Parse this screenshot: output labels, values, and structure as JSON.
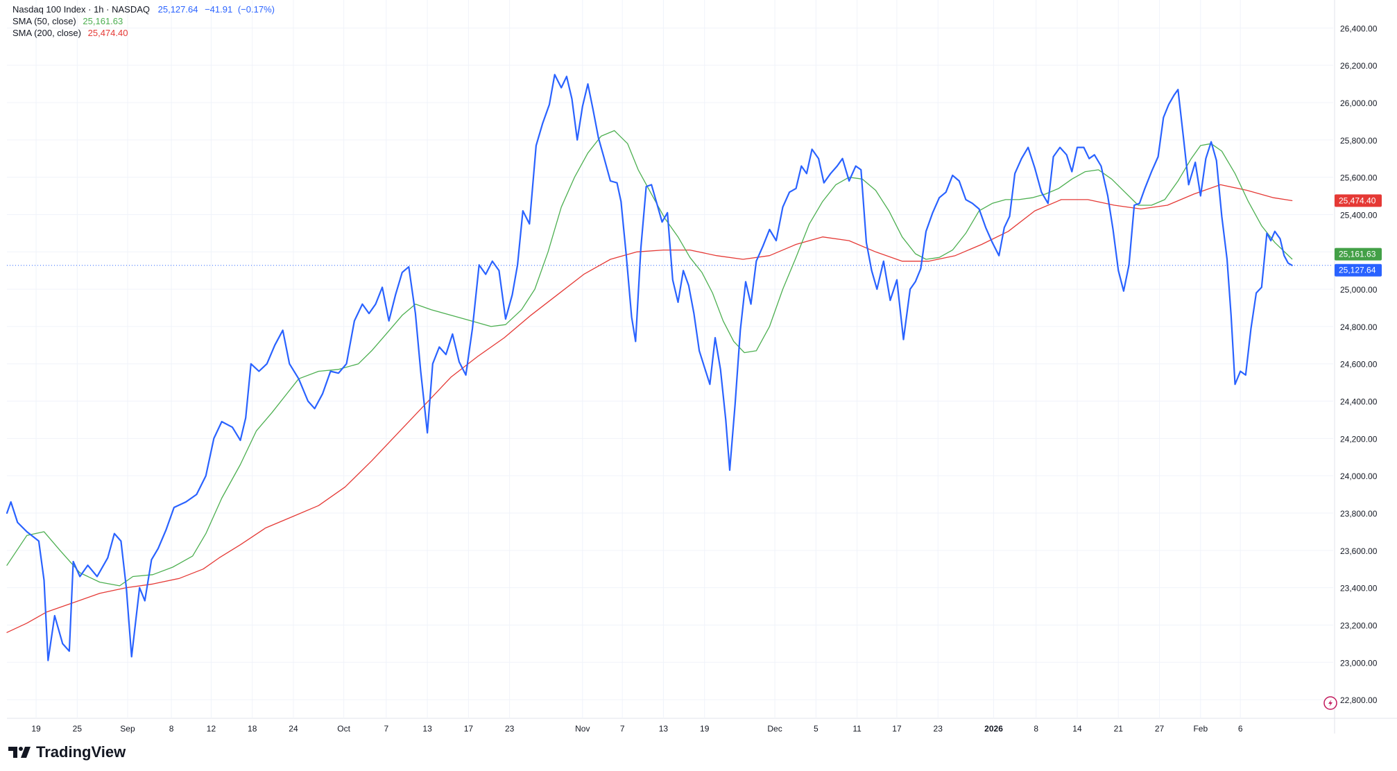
{
  "chart_data": {
    "type": "line",
    "instrument": {
      "name": "Nasdaq 100 Index",
      "interval": "1h",
      "exchange": "NASDAQ",
      "last": "25,127.64",
      "change": "−41.91",
      "change_pct": "(−0.17%)",
      "title_line": "Nasdaq 100 Index · 1h · NASDAQ"
    },
    "indicators": [
      {
        "label": "SMA (50, close)",
        "value": "25,161.63",
        "color": "#4caf50"
      },
      {
        "label": "SMA (200, close)",
        "value": "25,474.40",
        "color": "#e53935"
      }
    ],
    "price_color": "#2962ff",
    "ylim": [
      22700,
      26550
    ],
    "yticks": [
      "26,400.00",
      "26,200.00",
      "26,000.00",
      "25,800.00",
      "25,600.00",
      "25,400.00",
      "25,200.00",
      "25,000.00",
      "24,800.00",
      "24,600.00",
      "24,400.00",
      "24,200.00",
      "24,000.00",
      "23,800.00",
      "23,600.00",
      "23,400.00",
      "23,200.00",
      "23,000.00",
      "22,800.00"
    ],
    "ytick_values": [
      26400,
      26200,
      26000,
      25800,
      25600,
      25400,
      25200,
      25000,
      24800,
      24600,
      24400,
      24200,
      24000,
      23800,
      23600,
      23400,
      23200,
      23000,
      22800
    ],
    "xlim": [
      0,
      100
    ],
    "xticks": [
      {
        "label": "19",
        "x": 2.2,
        "bold": false
      },
      {
        "label": "25",
        "x": 5.3,
        "bold": false
      },
      {
        "label": "Sep",
        "x": 9.1,
        "bold": false
      },
      {
        "label": "8",
        "x": 12.4,
        "bold": false
      },
      {
        "label": "12",
        "x": 15.4,
        "bold": false
      },
      {
        "label": "18",
        "x": 18.5,
        "bold": false
      },
      {
        "label": "24",
        "x": 21.6,
        "bold": false
      },
      {
        "label": "Oct",
        "x": 25.4,
        "bold": false
      },
      {
        "label": "7",
        "x": 28.6,
        "bold": false
      },
      {
        "label": "13",
        "x": 31.7,
        "bold": false
      },
      {
        "label": "17",
        "x": 34.8,
        "bold": false
      },
      {
        "label": "23",
        "x": 37.9,
        "bold": false
      },
      {
        "label": "Nov",
        "x": 43.4,
        "bold": false
      },
      {
        "label": "7",
        "x": 46.4,
        "bold": false
      },
      {
        "label": "13",
        "x": 49.5,
        "bold": false
      },
      {
        "label": "19",
        "x": 52.6,
        "bold": false
      },
      {
        "label": "Dec",
        "x": 57.9,
        "bold": false
      },
      {
        "label": "5",
        "x": 61.0,
        "bold": false
      },
      {
        "label": "11",
        "x": 64.1,
        "bold": false
      },
      {
        "label": "17",
        "x": 67.1,
        "bold": false
      },
      {
        "label": "23",
        "x": 70.2,
        "bold": false
      },
      {
        "label": "2026",
        "x": 74.4,
        "bold": true
      },
      {
        "label": "8",
        "x": 77.6,
        "bold": false
      },
      {
        "label": "14",
        "x": 80.7,
        "bold": false
      },
      {
        "label": "21",
        "x": 83.8,
        "bold": false
      },
      {
        "label": "27",
        "x": 86.9,
        "bold": false
      },
      {
        "label": "Feb",
        "x": 90.0,
        "bold": false
      },
      {
        "label": "6",
        "x": 93.0,
        "bold": false
      }
    ],
    "price": [
      [
        0,
        23800
      ],
      [
        0.3,
        23860
      ],
      [
        0.8,
        23750
      ],
      [
        1.5,
        23700
      ],
      [
        2.4,
        23650
      ],
      [
        2.8,
        23440
      ],
      [
        3.1,
        23010
      ],
      [
        3.6,
        23250
      ],
      [
        4.2,
        23100
      ],
      [
        4.7,
        23060
      ],
      [
        5.0,
        23540
      ],
      [
        5.5,
        23460
      ],
      [
        6.1,
        23520
      ],
      [
        6.8,
        23460
      ],
      [
        7.6,
        23560
      ],
      [
        8.1,
        23690
      ],
      [
        8.6,
        23650
      ],
      [
        9.0,
        23400
      ],
      [
        9.4,
        23030
      ],
      [
        10.0,
        23400
      ],
      [
        10.4,
        23330
      ],
      [
        10.9,
        23550
      ],
      [
        11.4,
        23610
      ],
      [
        12.0,
        23710
      ],
      [
        12.6,
        23830
      ],
      [
        13.5,
        23860
      ],
      [
        14.3,
        23900
      ],
      [
        15.0,
        24000
      ],
      [
        15.6,
        24200
      ],
      [
        16.2,
        24290
      ],
      [
        17.0,
        24260
      ],
      [
        17.6,
        24190
      ],
      [
        18.0,
        24310
      ],
      [
        18.4,
        24600
      ],
      [
        19.0,
        24560
      ],
      [
        19.6,
        24600
      ],
      [
        20.2,
        24700
      ],
      [
        20.8,
        24780
      ],
      [
        21.3,
        24600
      ],
      [
        22.0,
        24520
      ],
      [
        22.7,
        24400
      ],
      [
        23.2,
        24360
      ],
      [
        23.8,
        24440
      ],
      [
        24.4,
        24560
      ],
      [
        25.0,
        24550
      ],
      [
        25.6,
        24600
      ],
      [
        26.2,
        24830
      ],
      [
        26.8,
        24920
      ],
      [
        27.3,
        24870
      ],
      [
        27.8,
        24920
      ],
      [
        28.3,
        25010
      ],
      [
        28.8,
        24830
      ],
      [
        29.3,
        24970
      ],
      [
        29.8,
        25090
      ],
      [
        30.3,
        25120
      ],
      [
        30.8,
        24870
      ],
      [
        31.2,
        24560
      ],
      [
        31.7,
        24230
      ],
      [
        32.1,
        24600
      ],
      [
        32.6,
        24690
      ],
      [
        33.1,
        24650
      ],
      [
        33.6,
        24760
      ],
      [
        34.1,
        24610
      ],
      [
        34.6,
        24540
      ],
      [
        35.1,
        24790
      ],
      [
        35.6,
        25130
      ],
      [
        36.1,
        25080
      ],
      [
        36.6,
        25150
      ],
      [
        37.1,
        25100
      ],
      [
        37.6,
        24840
      ],
      [
        38.1,
        24970
      ],
      [
        38.5,
        25130
      ],
      [
        38.9,
        25420
      ],
      [
        39.4,
        25350
      ],
      [
        39.9,
        25770
      ],
      [
        40.4,
        25890
      ],
      [
        40.9,
        25990
      ],
      [
        41.3,
        26150
      ],
      [
        41.8,
        26080
      ],
      [
        42.2,
        26140
      ],
      [
        42.6,
        26020
      ],
      [
        43.0,
        25800
      ],
      [
        43.4,
        25980
      ],
      [
        43.8,
        26100
      ],
      [
        44.2,
        25960
      ],
      [
        44.6,
        25810
      ],
      [
        45.0,
        25710
      ],
      [
        45.5,
        25580
      ],
      [
        46.0,
        25570
      ],
      [
        46.3,
        25470
      ],
      [
        46.7,
        25180
      ],
      [
        47.1,
        24850
      ],
      [
        47.4,
        24720
      ],
      [
        47.8,
        25220
      ],
      [
        48.2,
        25550
      ],
      [
        48.6,
        25560
      ],
      [
        49.0,
        25460
      ],
      [
        49.4,
        25360
      ],
      [
        49.8,
        25410
      ],
      [
        50.2,
        25050
      ],
      [
        50.6,
        24930
      ],
      [
        51.0,
        25100
      ],
      [
        51.4,
        25020
      ],
      [
        51.8,
        24870
      ],
      [
        52.2,
        24670
      ],
      [
        52.6,
        24580
      ],
      [
        53.0,
        24490
      ],
      [
        53.4,
        24740
      ],
      [
        53.8,
        24570
      ],
      [
        54.2,
        24300
      ],
      [
        54.5,
        24030
      ],
      [
        54.9,
        24380
      ],
      [
        55.3,
        24780
      ],
      [
        55.7,
        25040
      ],
      [
        56.1,
        24920
      ],
      [
        56.5,
        25150
      ],
      [
        57.0,
        25230
      ],
      [
        57.5,
        25320
      ],
      [
        58.0,
        25260
      ],
      [
        58.5,
        25440
      ],
      [
        59.0,
        25520
      ],
      [
        59.5,
        25540
      ],
      [
        59.9,
        25660
      ],
      [
        60.3,
        25620
      ],
      [
        60.7,
        25750
      ],
      [
        61.2,
        25700
      ],
      [
        61.6,
        25570
      ],
      [
        62.1,
        25620
      ],
      [
        62.6,
        25660
      ],
      [
        63.0,
        25700
      ],
      [
        63.5,
        25580
      ],
      [
        64.0,
        25660
      ],
      [
        64.4,
        25640
      ],
      [
        64.8,
        25250
      ],
      [
        65.2,
        25100
      ],
      [
        65.6,
        25000
      ],
      [
        66.1,
        25150
      ],
      [
        66.6,
        24940
      ],
      [
        67.1,
        25050
      ],
      [
        67.6,
        24730
      ],
      [
        68.1,
        25000
      ],
      [
        68.5,
        25040
      ],
      [
        68.9,
        25110
      ],
      [
        69.3,
        25310
      ],
      [
        69.8,
        25410
      ],
      [
        70.3,
        25490
      ],
      [
        70.8,
        25520
      ],
      [
        71.3,
        25610
      ],
      [
        71.8,
        25580
      ],
      [
        72.3,
        25480
      ],
      [
        72.8,
        25460
      ],
      [
        73.3,
        25430
      ],
      [
        73.8,
        25330
      ],
      [
        74.3,
        25250
      ],
      [
        74.8,
        25180
      ],
      [
        75.2,
        25330
      ],
      [
        75.6,
        25390
      ],
      [
        76.0,
        25620
      ],
      [
        76.5,
        25700
      ],
      [
        77.0,
        25760
      ],
      [
        77.5,
        25650
      ],
      [
        78.0,
        25520
      ],
      [
        78.5,
        25460
      ],
      [
        78.9,
        25710
      ],
      [
        79.4,
        25760
      ],
      [
        79.9,
        25720
      ],
      [
        80.3,
        25630
      ],
      [
        80.7,
        25760
      ],
      [
        81.2,
        25760
      ],
      [
        81.6,
        25700
      ],
      [
        82.0,
        25720
      ],
      [
        82.5,
        25660
      ],
      [
        83.0,
        25500
      ],
      [
        83.4,
        25320
      ],
      [
        83.8,
        25100
      ],
      [
        84.2,
        24990
      ],
      [
        84.6,
        25130
      ],
      [
        85.0,
        25450
      ],
      [
        85.4,
        25460
      ],
      [
        85.8,
        25540
      ],
      [
        86.3,
        25630
      ],
      [
        86.8,
        25710
      ],
      [
        87.2,
        25920
      ],
      [
        87.6,
        25990
      ],
      [
        88.0,
        26040
      ],
      [
        88.3,
        26070
      ],
      [
        88.7,
        25820
      ],
      [
        89.1,
        25560
      ],
      [
        89.6,
        25680
      ],
      [
        90.0,
        25500
      ],
      [
        90.4,
        25700
      ],
      [
        90.8,
        25790
      ],
      [
        91.2,
        25690
      ],
      [
        91.6,
        25390
      ],
      [
        92.0,
        25160
      ],
      [
        92.3,
        24860
      ],
      [
        92.6,
        24490
      ],
      [
        93.0,
        24560
      ],
      [
        93.4,
        24540
      ],
      [
        93.8,
        24790
      ],
      [
        94.2,
        24980
      ],
      [
        94.6,
        25010
      ],
      [
        95.0,
        25300
      ],
      [
        95.3,
        25260
      ],
      [
        95.6,
        25310
      ],
      [
        96.0,
        25270
      ],
      [
        96.3,
        25180
      ],
      [
        96.6,
        25140
      ],
      [
        96.9,
        25127.64
      ]
    ],
    "sma50": [
      [
        0,
        23520
      ],
      [
        1.5,
        23680
      ],
      [
        2.8,
        23700
      ],
      [
        4.0,
        23600
      ],
      [
        5.5,
        23480
      ],
      [
        7.0,
        23430
      ],
      [
        8.5,
        23410
      ],
      [
        9.5,
        23460
      ],
      [
        11.0,
        23470
      ],
      [
        12.5,
        23510
      ],
      [
        14.0,
        23570
      ],
      [
        15.0,
        23690
      ],
      [
        16.2,
        23880
      ],
      [
        17.6,
        24060
      ],
      [
        18.8,
        24240
      ],
      [
        20.0,
        24340
      ],
      [
        21.0,
        24430
      ],
      [
        22.0,
        24520
      ],
      [
        23.5,
        24560
      ],
      [
        25.0,
        24570
      ],
      [
        26.5,
        24600
      ],
      [
        27.5,
        24670
      ],
      [
        28.6,
        24760
      ],
      [
        29.8,
        24860
      ],
      [
        30.8,
        24920
      ],
      [
        32.0,
        24890
      ],
      [
        33.5,
        24860
      ],
      [
        35.0,
        24830
      ],
      [
        36.5,
        24800
      ],
      [
        37.6,
        24810
      ],
      [
        38.8,
        24890
      ],
      [
        39.8,
        25000
      ],
      [
        40.8,
        25200
      ],
      [
        41.8,
        25440
      ],
      [
        42.8,
        25600
      ],
      [
        43.8,
        25730
      ],
      [
        44.8,
        25820
      ],
      [
        45.8,
        25850
      ],
      [
        46.8,
        25780
      ],
      [
        47.6,
        25640
      ],
      [
        48.6,
        25510
      ],
      [
        49.6,
        25380
      ],
      [
        50.6,
        25280
      ],
      [
        51.5,
        25170
      ],
      [
        52.4,
        25090
      ],
      [
        53.2,
        24980
      ],
      [
        54.0,
        24830
      ],
      [
        54.8,
        24720
      ],
      [
        55.6,
        24660
      ],
      [
        56.5,
        24670
      ],
      [
        57.5,
        24800
      ],
      [
        58.5,
        25000
      ],
      [
        59.5,
        25170
      ],
      [
        60.5,
        25350
      ],
      [
        61.5,
        25470
      ],
      [
        62.5,
        25560
      ],
      [
        63.5,
        25600
      ],
      [
        64.5,
        25590
      ],
      [
        65.5,
        25530
      ],
      [
        66.5,
        25420
      ],
      [
        67.5,
        25280
      ],
      [
        68.5,
        25190
      ],
      [
        69.3,
        25160
      ],
      [
        70.3,
        25170
      ],
      [
        71.3,
        25210
      ],
      [
        72.3,
        25300
      ],
      [
        73.3,
        25420
      ],
      [
        74.3,
        25460
      ],
      [
        75.3,
        25480
      ],
      [
        76.3,
        25480
      ],
      [
        77.3,
        25490
      ],
      [
        78.3,
        25510
      ],
      [
        79.3,
        25540
      ],
      [
        80.3,
        25590
      ],
      [
        81.3,
        25630
      ],
      [
        82.3,
        25640
      ],
      [
        83.3,
        25590
      ],
      [
        84.3,
        25520
      ],
      [
        85.3,
        25450
      ],
      [
        86.3,
        25450
      ],
      [
        87.3,
        25480
      ],
      [
        88.3,
        25580
      ],
      [
        89.3,
        25700
      ],
      [
        90.0,
        25770
      ],
      [
        90.8,
        25780
      ],
      [
        91.6,
        25740
      ],
      [
        92.6,
        25620
      ],
      [
        93.6,
        25470
      ],
      [
        94.6,
        25340
      ],
      [
        95.6,
        25250
      ],
      [
        96.9,
        25161.63
      ]
    ],
    "sma200": [
      [
        0,
        23160
      ],
      [
        1.5,
        23210
      ],
      [
        3.0,
        23270
      ],
      [
        5.0,
        23320
      ],
      [
        7.0,
        23370
      ],
      [
        9.0,
        23400
      ],
      [
        11.0,
        23420
      ],
      [
        13.0,
        23450
      ],
      [
        14.8,
        23500
      ],
      [
        16.0,
        23560
      ],
      [
        17.6,
        23630
      ],
      [
        19.5,
        23720
      ],
      [
        21.5,
        23780
      ],
      [
        23.5,
        23840
      ],
      [
        25.5,
        23940
      ],
      [
        27.5,
        24080
      ],
      [
        29.5,
        24230
      ],
      [
        31.5,
        24380
      ],
      [
        33.5,
        24530
      ],
      [
        35.5,
        24640
      ],
      [
        37.5,
        24740
      ],
      [
        39.5,
        24860
      ],
      [
        41.5,
        24970
      ],
      [
        43.5,
        25080
      ],
      [
        45.5,
        25160
      ],
      [
        47.5,
        25200
      ],
      [
        49.5,
        25210
      ],
      [
        51.5,
        25210
      ],
      [
        53.5,
        25180
      ],
      [
        55.5,
        25160
      ],
      [
        57.5,
        25180
      ],
      [
        59.5,
        25240
      ],
      [
        61.5,
        25280
      ],
      [
        63.5,
        25260
      ],
      [
        65.5,
        25200
      ],
      [
        67.5,
        25150
      ],
      [
        69.5,
        25150
      ],
      [
        71.5,
        25180
      ],
      [
        73.5,
        25240
      ],
      [
        75.5,
        25310
      ],
      [
        77.5,
        25420
      ],
      [
        79.5,
        25480
      ],
      [
        81.5,
        25480
      ],
      [
        83.5,
        25450
      ],
      [
        85.5,
        25430
      ],
      [
        87.5,
        25450
      ],
      [
        89.5,
        25510
      ],
      [
        91.5,
        25560
      ],
      [
        93.5,
        25530
      ],
      [
        95.5,
        25490
      ],
      [
        96.9,
        25474.4
      ]
    ],
    "price_tag": {
      "value": 25127.64,
      "label": "25,127.64",
      "color": "#2962ff"
    },
    "sma50_tag": {
      "value": 25161.63,
      "label": "25,161.63",
      "color": "#43a047"
    },
    "sma200_tag": {
      "value": 25474.4,
      "label": "25,474.40",
      "color": "#e53935"
    }
  },
  "brand": {
    "name": "TradingView"
  }
}
